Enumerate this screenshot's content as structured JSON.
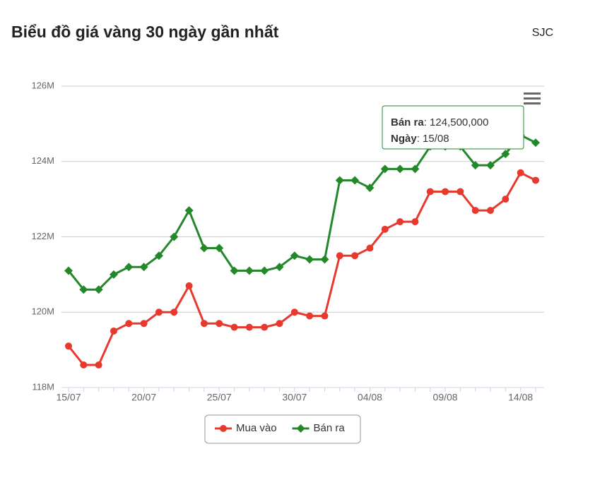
{
  "header": {
    "title": "Biểu đồ giá vàng 30 ngày gần nhất",
    "source": "SJC"
  },
  "chart_data": {
    "type": "line",
    "categories": [
      "15/07",
      null,
      null,
      null,
      null,
      "20/07",
      null,
      null,
      null,
      null,
      "25/07",
      null,
      null,
      null,
      null,
      "30/07",
      null,
      null,
      null,
      null,
      "04/08",
      null,
      null,
      null,
      null,
      "09/08",
      null,
      null,
      null,
      null,
      "14/08",
      "15/08"
    ],
    "series": [
      {
        "name": "Mua vào",
        "color": "#e8392f",
        "marker": "circle",
        "values": [
          119100000,
          118600000,
          118600000,
          119500000,
          119700000,
          119700000,
          120000000,
          120000000,
          120700000,
          119700000,
          119700000,
          119600000,
          119600000,
          119600000,
          119700000,
          120000000,
          119900000,
          119900000,
          121500000,
          121500000,
          121700000,
          122200000,
          122400000,
          122400000,
          123200000,
          123200000,
          123200000,
          122700000,
          122700000,
          123000000,
          123700000,
          123500000
        ]
      },
      {
        "name": "Bán ra",
        "color": "#23882a",
        "marker": "diamond",
        "values": [
          121100000,
          120600000,
          120600000,
          121000000,
          121200000,
          121200000,
          121500000,
          122000000,
          122700000,
          121700000,
          121700000,
          121100000,
          121100000,
          121100000,
          121200000,
          121500000,
          121400000,
          121400000,
          123500000,
          123500000,
          123300000,
          123800000,
          123800000,
          123800000,
          124400000,
          124400000,
          124400000,
          123900000,
          123900000,
          124200000,
          124700000,
          124500000
        ]
      }
    ],
    "ylim": [
      118000000,
      126000000
    ],
    "yticks": [
      {
        "value": 118000000,
        "label": "118M"
      },
      {
        "value": 120000000,
        "label": "120M"
      },
      {
        "value": 122000000,
        "label": "122M"
      },
      {
        "value": 124000000,
        "label": "124M"
      },
      {
        "value": 126000000,
        "label": "126M"
      }
    ],
    "grid": true,
    "legend": "bottom",
    "tooltip": {
      "value_label": "124,500,000",
      "date_label": "Ngày"
    }
  }
}
